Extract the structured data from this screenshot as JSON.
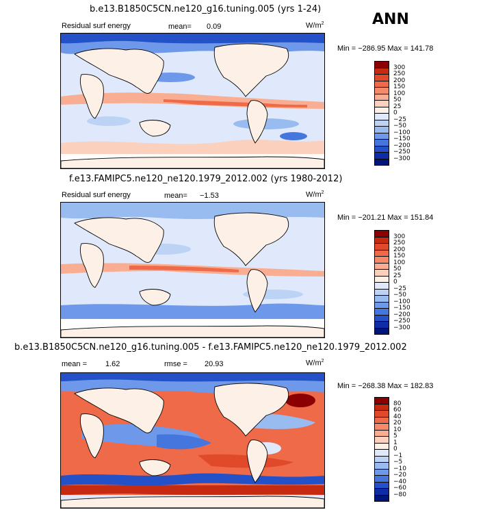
{
  "season": "ANN",
  "panels": [
    {
      "title": "b.e13.B1850C5CN.ne120_g16.tuning.005 (yrs 1-24)",
      "variable": "Residual surf energy",
      "stat1_label": "mean=",
      "stat1_value": "0.09",
      "units": "W/m",
      "units_exp": "2",
      "minmax": "Min = −286.95  Max = 141.78",
      "levels": [
        "300",
        "250",
        "200",
        "150",
        "100",
        "50",
        "25",
        "0",
        "−25",
        "−50",
        "−100",
        "−150",
        "−200",
        "−250",
        "−300"
      ],
      "colors": [
        "#8b0000",
        "#c62a11",
        "#e04a2a",
        "#ef6a48",
        "#f58a6a",
        "#f9ae93",
        "#fbd0bd",
        "#fdf0e6",
        "#dfe9fb",
        "#bcd3f5",
        "#98bbf0",
        "#6e99ea",
        "#4576dd",
        "#2451c7",
        "#0d2ca6",
        "#00157a"
      ]
    },
    {
      "title": "f.e13.FAMIPC5.ne120_ne120.1979_2012.002 (yrs 1980-2012)",
      "variable": "Residual surf energy",
      "stat1_label": "mean=",
      "stat1_value": "−1.53",
      "units": "W/m",
      "units_exp": "2",
      "minmax": "Min = −201.21  Max = 151.84",
      "levels": [
        "300",
        "250",
        "200",
        "150",
        "100",
        "50",
        "25",
        "0",
        "−25",
        "−50",
        "−100",
        "−150",
        "−200",
        "−250",
        "−300"
      ],
      "colors": [
        "#8b0000",
        "#c62a11",
        "#e04a2a",
        "#ef6a48",
        "#f58a6a",
        "#f9ae93",
        "#fbd0bd",
        "#fdf0e6",
        "#dfe9fb",
        "#bcd3f5",
        "#98bbf0",
        "#6e99ea",
        "#4576dd",
        "#2451c7",
        "#0d2ca6",
        "#00157a"
      ]
    },
    {
      "title": "b.e13.B1850C5CN.ne120_g16.tuning.005 - f.e13.FAMIPC5.ne120_ne120.1979_2012.002",
      "variable": "",
      "stat1_label": "mean =",
      "stat1_value": "1.62",
      "stat2_label": "rmse =",
      "stat2_value": "20.93",
      "units": "W/m",
      "units_exp": "2",
      "minmax": "Min = −268.38  Max = 182.83",
      "levels": [
        "80",
        "60",
        "40",
        "20",
        "10",
        "5",
        "1",
        "0",
        "−1",
        "−5",
        "−10",
        "−20",
        "−40",
        "−60",
        "−80"
      ],
      "colors": [
        "#8b0000",
        "#c62a11",
        "#e04a2a",
        "#ef6a48",
        "#f58a6a",
        "#f9ae93",
        "#fbd0bd",
        "#fdf0e6",
        "#dfe9fb",
        "#bcd3f5",
        "#98bbf0",
        "#6e99ea",
        "#4576dd",
        "#2451c7",
        "#0d2ca6",
        "#00157a"
      ]
    }
  ]
}
